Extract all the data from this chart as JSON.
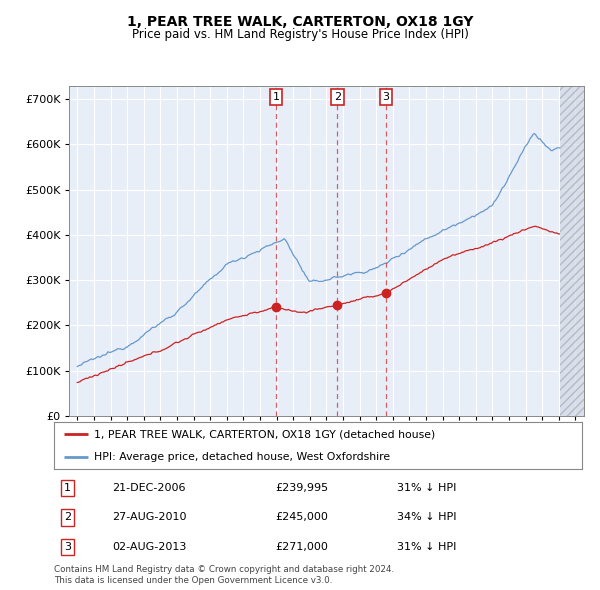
{
  "title": "1, PEAR TREE WALK, CARTERTON, OX18 1GY",
  "subtitle": "Price paid vs. HM Land Registry's House Price Index (HPI)",
  "background_color": "#ffffff",
  "plot_bg_color": "#e8eef8",
  "grid_color": "#ffffff",
  "hpi_color": "#6699cc",
  "price_color": "#cc2222",
  "transactions": [
    {
      "num": 1,
      "date": "21-DEC-2006",
      "price": 239995,
      "hpi_pct": "31% ↓ HPI",
      "x_year": 2006.97
    },
    {
      "num": 2,
      "date": "27-AUG-2010",
      "price": 245000,
      "hpi_pct": "34% ↓ HPI",
      "x_year": 2010.65
    },
    {
      "num": 3,
      "date": "02-AUG-2013",
      "price": 271000,
      "hpi_pct": "31% ↓ HPI",
      "x_year": 2013.58
    }
  ],
  "legend_house_label": "1, PEAR TREE WALK, CARTERTON, OX18 1GY (detached house)",
  "legend_hpi_label": "HPI: Average price, detached house, West Oxfordshire",
  "footnote": "Contains HM Land Registry data © Crown copyright and database right 2024.\nThis data is licensed under the Open Government Licence v3.0.",
  "ylim": [
    0,
    730000
  ],
  "xlim_left": 1994.5,
  "xlim_right": 2025.5,
  "data_end_year": 2024.08,
  "yticks": [
    0,
    100000,
    200000,
    300000,
    400000,
    500000,
    600000,
    700000
  ]
}
